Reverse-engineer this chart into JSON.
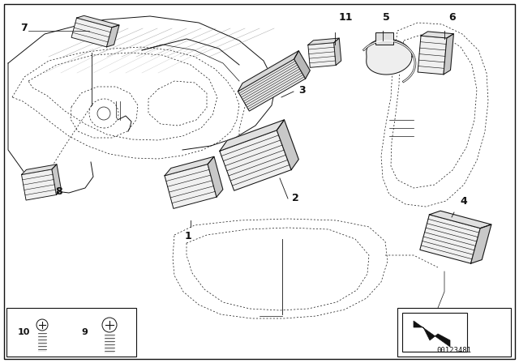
{
  "bg_color": "#ffffff",
  "part_number": "00123481",
  "fig_width": 6.4,
  "fig_height": 4.48,
  "dpi": 100
}
